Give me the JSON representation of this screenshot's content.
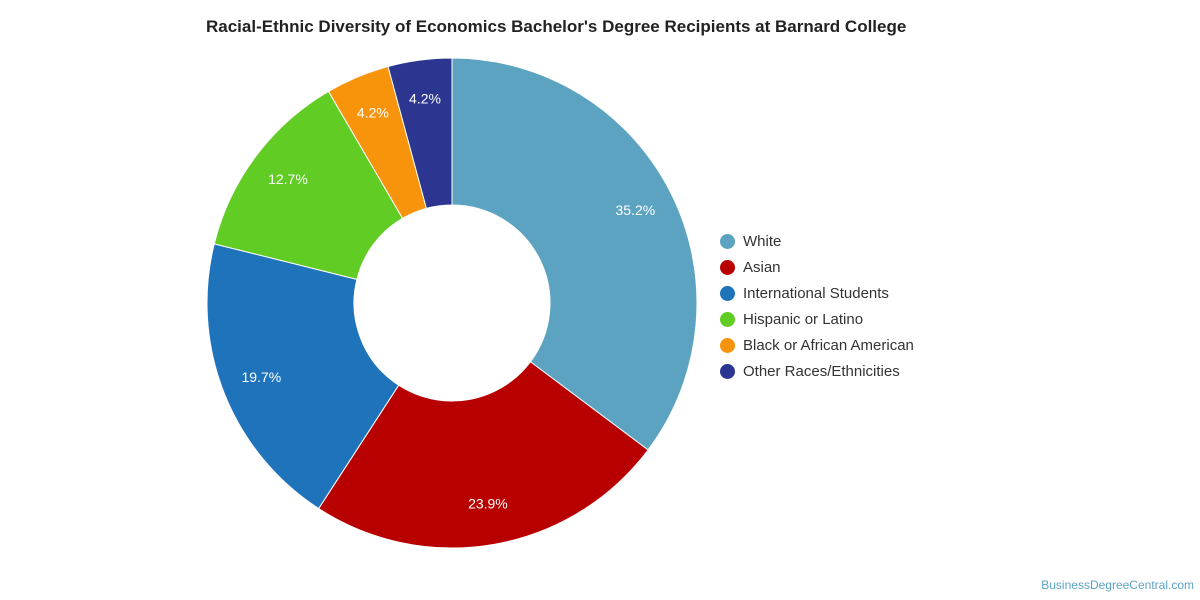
{
  "chart_data": {
    "type": "pie",
    "title": "Racial-Ethnic Diversity of Economics Bachelor's Degree Recipients at Barnard College",
    "donut": true,
    "legend_position": "right",
    "slices": [
      {
        "label": "White",
        "value": 35.2,
        "value_label": "35.2%",
        "color": "#5ba3c0"
      },
      {
        "label": "Asian",
        "value": 23.9,
        "value_label": "23.9%",
        "color": "#b80000"
      },
      {
        "label": "International Students",
        "value": 19.7,
        "value_label": "19.7%",
        "color": "#1f73bb"
      },
      {
        "label": "Hispanic or Latino",
        "value": 12.7,
        "value_label": "12.7%",
        "color": "#61cc24"
      },
      {
        "label": "Black or African American",
        "value": 4.2,
        "value_label": "4.2%",
        "color": "#f7940c"
      },
      {
        "label": "Other Races/Ethnicities",
        "value": 4.2,
        "value_label": "4.2%",
        "color": "#2c3690"
      }
    ]
  },
  "footer": {
    "source": "BusinessDegreeCentral.com"
  }
}
